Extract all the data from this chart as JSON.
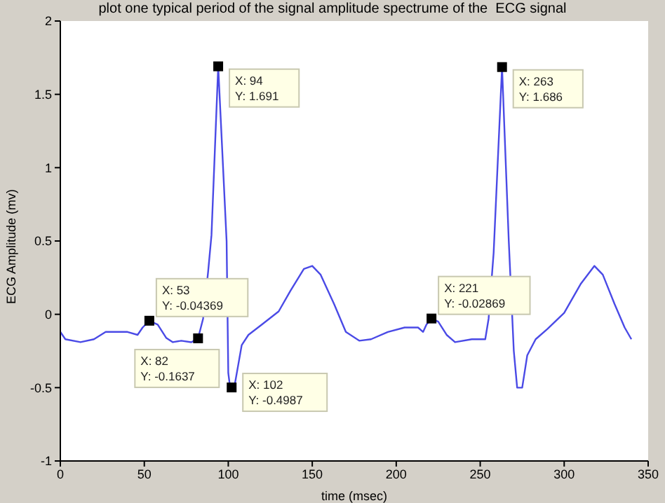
{
  "chart_data": {
    "type": "line",
    "title": "plot one typical period of the signal amplitude spectrume of the  ECG signal",
    "xlabel": "time (msec)",
    "ylabel": "ECG Amplitude  (mv)",
    "x": [
      0,
      3,
      12,
      20,
      27,
      40,
      46,
      49,
      53,
      58,
      63,
      67,
      72,
      78,
      82,
      85,
      88,
      90,
      94,
      99,
      100,
      101,
      102,
      104,
      106,
      108,
      112,
      120,
      130,
      137,
      145,
      150,
      155,
      163,
      170,
      178,
      185,
      195,
      205,
      213,
      216,
      218,
      221,
      225,
      230,
      235,
      245,
      253,
      255,
      258,
      263,
      267,
      270,
      272,
      275,
      278,
      283,
      290,
      300,
      310,
      318,
      323,
      330,
      336,
      340
    ],
    "series": [
      {
        "color": "#4a4ae6",
        "values": [
          -0.12,
          -0.17,
          -0.19,
          -0.17,
          -0.12,
          -0.12,
          -0.14,
          -0.09,
          -0.04369,
          -0.07,
          -0.16,
          -0.19,
          -0.18,
          -0.19,
          -0.1637,
          -0.03,
          0.29,
          0.54,
          1.691,
          0.5,
          -0.4,
          -0.49,
          -0.4987,
          -0.47,
          -0.34,
          -0.21,
          -0.14,
          -0.07,
          0.02,
          0.16,
          0.31,
          0.33,
          0.27,
          0.07,
          -0.12,
          -0.18,
          -0.17,
          -0.12,
          -0.09,
          -0.09,
          -0.12,
          -0.07,
          -0.02869,
          -0.05,
          -0.14,
          -0.19,
          -0.17,
          -0.17,
          -0.03,
          0.42,
          1.686,
          0.5,
          -0.25,
          -0.5,
          -0.5,
          -0.28,
          -0.17,
          -0.1,
          0.01,
          0.21,
          0.33,
          0.27,
          0.07,
          -0.09,
          -0.17
        ]
      }
    ],
    "xlim": [
      0,
      350
    ],
    "xticks": [
      0,
      50,
      100,
      150,
      200,
      250,
      300,
      350
    ],
    "ylim": [
      -1,
      2
    ],
    "yticks": [
      -1,
      -0.5,
      0,
      0.5,
      1,
      1.5,
      2
    ],
    "grid": false,
    "legend": false,
    "marker": "none",
    "line_style": "solid",
    "annotations": [
      {
        "text": "X: 94\nY: 1.691",
        "x": 94,
        "y": 1.691
      },
      {
        "text": "X: 263\nY: 1.686",
        "x": 263,
        "y": 1.686
      },
      {
        "text": "X: 53\nY: -0.04369",
        "x": 53,
        "y": -0.04369
      },
      {
        "text": "X: 82\nY: -0.1637",
        "x": 82,
        "y": -0.1637
      },
      {
        "text": "X: 102\nY: -0.4987",
        "x": 102,
        "y": -0.4987
      },
      {
        "text": "X: 221\nY: -0.02869",
        "x": 221,
        "y": -0.02869
      }
    ]
  }
}
